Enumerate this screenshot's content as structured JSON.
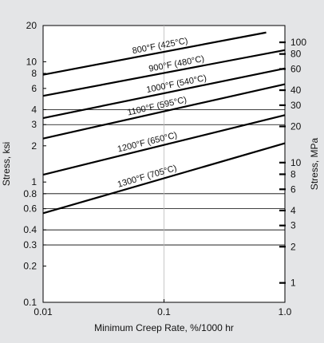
{
  "chart_data": {
    "type": "line",
    "title": "",
    "xlabel": "Minimum Creep Rate, %/1000 hr",
    "ylabel": "Stress, ksi",
    "ylabel_right": "Stress, MPa",
    "x_scale": "log",
    "y_scale": "log",
    "xlim": [
      0.01,
      1.0
    ],
    "ylim": [
      0.1,
      20
    ],
    "x_ticks": [
      {
        "value": 0.01,
        "label": "0.01"
      },
      {
        "value": 0.1,
        "label": "0.1"
      },
      {
        "value": 1.0,
        "label": "1.0"
      }
    ],
    "y_ticks_left": [
      {
        "value": 20,
        "label": "20"
      },
      {
        "value": 10,
        "label": "10"
      },
      {
        "value": 8,
        "label": "8"
      },
      {
        "value": 6,
        "label": "6"
      },
      {
        "value": 4,
        "label": "4"
      },
      {
        "value": 3,
        "label": "3"
      },
      {
        "value": 2,
        "label": "2"
      },
      {
        "value": 1,
        "label": "1"
      },
      {
        "value": 0.8,
        "label": "0.8"
      },
      {
        "value": 0.6,
        "label": "0.6"
      },
      {
        "value": 0.4,
        "label": "0.4"
      },
      {
        "value": 0.3,
        "label": "0.3"
      },
      {
        "value": 0.2,
        "label": "0.2"
      },
      {
        "value": 0.1,
        "label": "0.1"
      }
    ],
    "y_ticks_right": [
      {
        "value": 100,
        "label": "100"
      },
      {
        "value": 80,
        "label": "80"
      },
      {
        "value": 60,
        "label": "60"
      },
      {
        "value": 40,
        "label": "40"
      },
      {
        "value": 30,
        "label": "30"
      },
      {
        "value": 20,
        "label": "20"
      },
      {
        "value": 10,
        "label": "10"
      },
      {
        "value": 8,
        "label": "8"
      },
      {
        "value": 6,
        "label": "6"
      },
      {
        "value": 4,
        "label": "4"
      },
      {
        "value": 3,
        "label": "3"
      },
      {
        "value": 2,
        "label": "2"
      },
      {
        "value": 1,
        "label": "1"
      }
    ],
    "gridlines_y": [
      4,
      3,
      0.8,
      0.6,
      0.4,
      0.3
    ],
    "gridlines_x": [
      0.1
    ],
    "grid": "partial",
    "legend": "inline labels on lines",
    "series": [
      {
        "name": "800°F (425°C)",
        "points": [
          [
            0.01,
            7.8
          ],
          [
            0.7,
            17.5
          ]
        ]
      },
      {
        "name": "900°F (480°C)",
        "points": [
          [
            0.01,
            5.2
          ],
          [
            1.0,
            12.5
          ]
        ]
      },
      {
        "name": "1000°F (540°C)",
        "points": [
          [
            0.01,
            3.4
          ],
          [
            1.0,
            8.8
          ]
        ]
      },
      {
        "name": "1100°F (595°C)",
        "points": [
          [
            0.01,
            2.3
          ],
          [
            1.0,
            6.5
          ]
        ]
      },
      {
        "name": "1200°F (650°C)",
        "points": [
          [
            0.01,
            1.15
          ],
          [
            1.0,
            3.6
          ]
        ]
      },
      {
        "name": "1300°F (705°C)",
        "points": [
          [
            0.01,
            0.55
          ],
          [
            1.0,
            2.1
          ]
        ]
      }
    ],
    "colors": {
      "background": "#e4e5e7",
      "plot_area": "#ffffff",
      "line": "#000000",
      "grid": "#000000",
      "minor_grid": "#bbbbbb"
    }
  }
}
